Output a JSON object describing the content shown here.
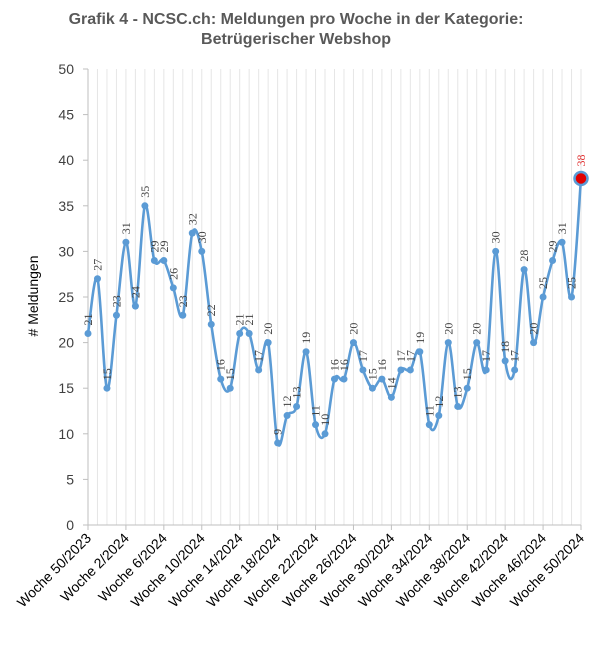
{
  "chart_data": {
    "type": "line",
    "title_lines": [
      "Grafik 4 - NCSC.ch: Meldungen pro Woche in der Kategorie:",
      "Betrügerischer Webshop"
    ],
    "ylabel": "# Meldungen",
    "xlabel": "",
    "ylim": [
      0,
      50
    ],
    "yticks": [
      0,
      5,
      10,
      15,
      20,
      25,
      30,
      35,
      40,
      45,
      50
    ],
    "grid": "vertical",
    "x_tick_labels": [
      "Woche 50/2023",
      "Woche 2/2024",
      "Woche 6/2024",
      "Woche 10/2024",
      "Woche 14/2024",
      "Woche 18/2024",
      "Woche 22/2024",
      "Woche 26/2024",
      "Woche 30/2024",
      "Woche 34/2024",
      "Woche 38/2024",
      "Woche 42/2024",
      "Woche 46/2024",
      "Woche 50/2024"
    ],
    "series": [
      {
        "values": [
          21,
          27,
          15,
          23,
          31,
          24,
          35,
          29,
          29,
          26,
          23,
          32,
          30,
          22,
          16,
          15,
          21,
          21,
          17,
          20,
          9,
          12,
          13,
          19,
          11,
          10,
          16,
          16,
          20,
          17,
          15,
          16,
          14,
          17,
          17,
          19,
          11,
          12,
          20,
          13,
          15,
          20,
          17,
          30,
          18,
          17,
          28,
          20,
          25,
          29,
          31,
          25,
          38
        ],
        "color": "#5b9bd5",
        "highlight_last_color": "#e00000"
      }
    ]
  }
}
